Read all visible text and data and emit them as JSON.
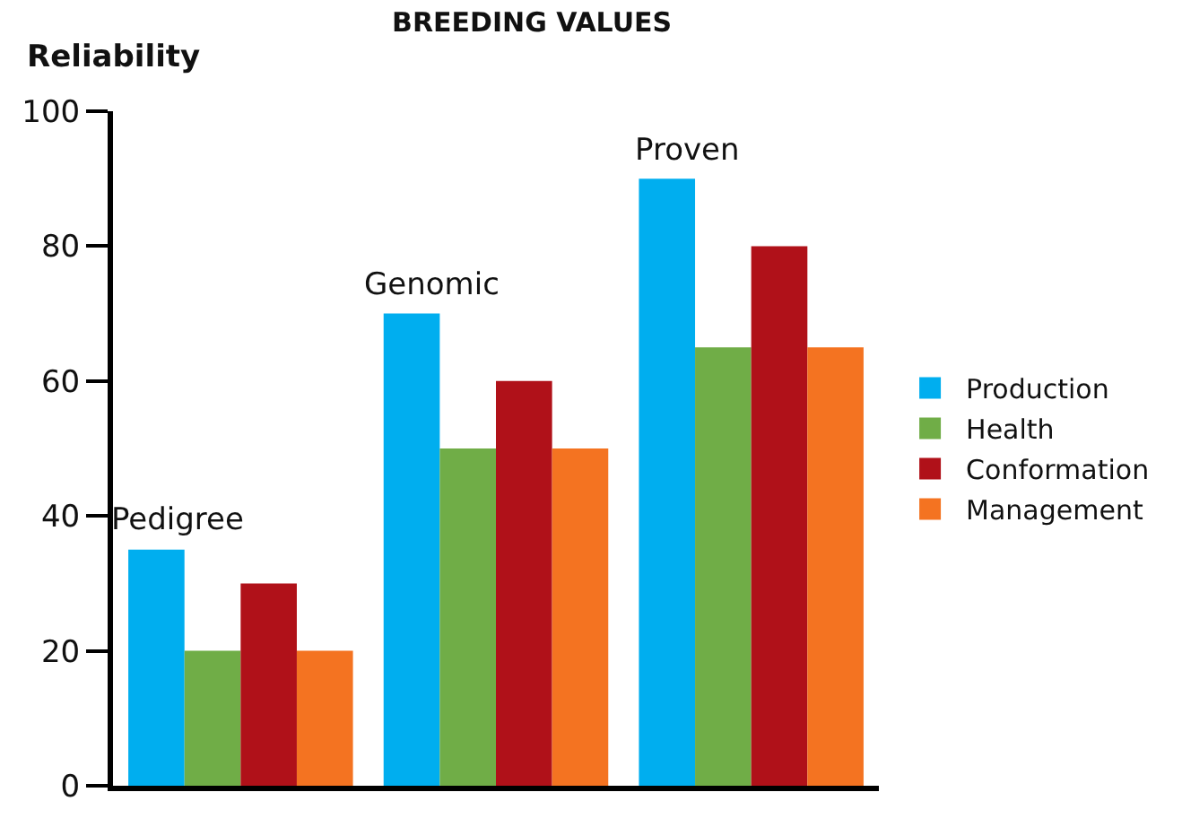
{
  "chart_data": {
    "type": "bar",
    "title": "BREEDING VALUES",
    "ylabel": "Reliability",
    "categories": [
      "Pedigree",
      "Genomic",
      "Proven"
    ],
    "series": [
      {
        "name": "Production",
        "color": "#00aeef",
        "values": [
          35,
          70,
          90
        ]
      },
      {
        "name": "Health",
        "color": "#70ad47",
        "values": [
          20,
          50,
          65
        ]
      },
      {
        "name": "Conformation",
        "color": "#b01119",
        "values": [
          30,
          60,
          80
        ]
      },
      {
        "name": "Management",
        "color": "#f47321",
        "values": [
          20,
          50,
          65
        ]
      }
    ],
    "ylim": [
      0,
      100
    ],
    "yticks": [
      0,
      20,
      40,
      60,
      80,
      100
    ],
    "legend": "right",
    "tick_labels": "y"
  }
}
